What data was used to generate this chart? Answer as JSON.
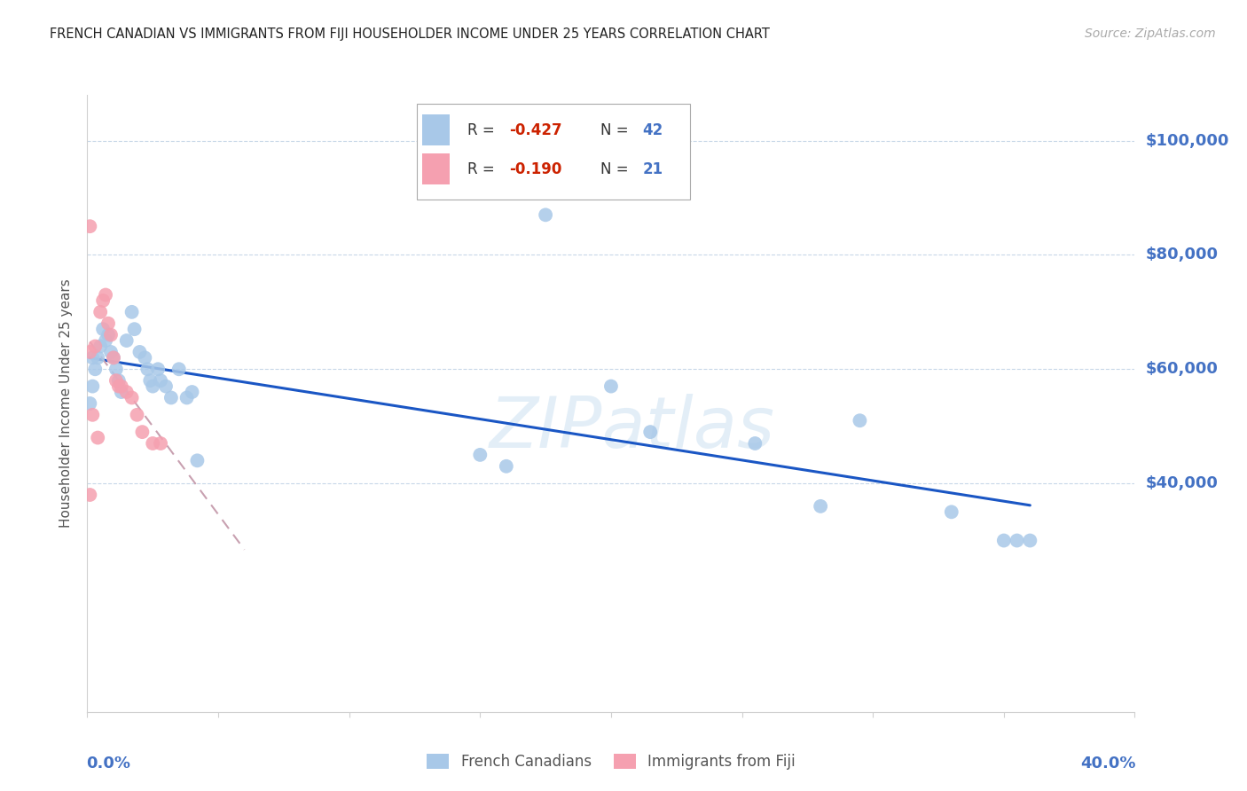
{
  "title": "FRENCH CANADIAN VS IMMIGRANTS FROM FIJI HOUSEHOLDER INCOME UNDER 25 YEARS CORRELATION CHART",
  "source": "Source: ZipAtlas.com",
  "ylabel": "Householder Income Under 25 years",
  "watermark": "ZIPatlas",
  "legend1_r": "-0.427",
  "legend1_n": "42",
  "legend2_r": "-0.190",
  "legend2_n": "21",
  "fc_color": "#a8c8e8",
  "fiji_color": "#f5a0b0",
  "trend_fc_color": "#1a56c4",
  "trend_fiji_color": "#c8a0b0",
  "axis_color": "#4472c4",
  "xlim": [
    0.0,
    0.4
  ],
  "ylim": [
    0,
    108000
  ],
  "yticks": [
    40000,
    60000,
    80000,
    100000
  ],
  "ytick_labels": [
    "$40,000",
    "$60,000",
    "$80,000",
    "$100,000"
  ],
  "xticks": [
    0.0,
    0.05,
    0.1,
    0.15,
    0.2,
    0.25,
    0.3,
    0.35,
    0.4
  ],
  "fc_points_x": [
    0.001,
    0.002,
    0.002,
    0.003,
    0.004,
    0.005,
    0.006,
    0.007,
    0.008,
    0.009,
    0.01,
    0.011,
    0.012,
    0.013,
    0.015,
    0.017,
    0.018,
    0.02,
    0.022,
    0.023,
    0.024,
    0.025,
    0.027,
    0.028,
    0.03,
    0.032,
    0.035,
    0.038,
    0.04,
    0.042,
    0.15,
    0.16,
    0.2,
    0.215,
    0.255,
    0.295,
    0.33,
    0.35,
    0.355,
    0.36,
    0.28,
    0.175
  ],
  "fc_points_y": [
    54000,
    62000,
    57000,
    60000,
    62000,
    64000,
    67000,
    65000,
    66000,
    63000,
    62000,
    60000,
    58000,
    56000,
    65000,
    70000,
    67000,
    63000,
    62000,
    60000,
    58000,
    57000,
    60000,
    58000,
    57000,
    55000,
    60000,
    55000,
    56000,
    44000,
    45000,
    43000,
    57000,
    49000,
    47000,
    51000,
    35000,
    30000,
    30000,
    30000,
    36000,
    87000
  ],
  "fiji_points_x": [
    0.001,
    0.002,
    0.003,
    0.004,
    0.005,
    0.006,
    0.007,
    0.008,
    0.009,
    0.01,
    0.011,
    0.012,
    0.013,
    0.015,
    0.017,
    0.019,
    0.021,
    0.025,
    0.028,
    0.001,
    0.001
  ],
  "fiji_points_y": [
    38000,
    52000,
    64000,
    48000,
    70000,
    72000,
    73000,
    68000,
    66000,
    62000,
    58000,
    57000,
    57000,
    56000,
    55000,
    52000,
    49000,
    47000,
    47000,
    63000,
    85000
  ],
  "fc_trend_x": [
    0.001,
    0.36
  ],
  "fiji_trend_x": [
    0.001,
    0.06
  ]
}
